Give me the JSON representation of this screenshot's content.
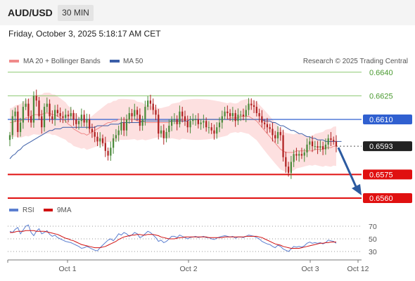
{
  "header": {
    "symbol": "AUD/USD",
    "timeframe": "30 MIN"
  },
  "datetime": "Friday, October 3, 2025 5:18:17 AM CET",
  "legend": {
    "ma20": "MA 20 + Bollinger Bands",
    "ma50": "MA 50",
    "rsi": "RSI",
    "ma9": "9MA"
  },
  "watermark": "Research © 2025 Trading Central",
  "colors": {
    "ma20": "#f08a8a",
    "bands": "#fde0e0",
    "ma50": "#3b5ea8",
    "up": "#4a8a3a",
    "down": "#b02020",
    "support": "#e01010",
    "resistance": "#8cc870",
    "current_line": "#3060d0",
    "arrow": "#2c5aa0",
    "rsi": "#5b7fd0",
    "rsi_ma": "#d01010"
  },
  "chart_data": [
    {
      "type": "candlestick",
      "title": "",
      "x_labels": [
        "Oct 1",
        "Oct 2",
        "Oct 3",
        "Oct 12"
      ],
      "ylim": [
        0.6555,
        0.6645
      ],
      "current_price": 0.6593,
      "levels": [
        {
          "value": 0.664,
          "label": "0.6640",
          "kind": "resistance"
        },
        {
          "value": 0.6625,
          "label": "0.6625",
          "kind": "resistance"
        },
        {
          "value": 0.661,
          "label": "0.6610",
          "kind": "pivot"
        },
        {
          "value": 0.6593,
          "label": "0.6593",
          "kind": "current"
        },
        {
          "value": 0.6575,
          "label": "0.6575",
          "kind": "support"
        },
        {
          "value": 0.656,
          "label": "0.6560",
          "kind": "support"
        }
      ],
      "forecast": {
        "from": 0.6593,
        "to": 0.656
      },
      "close": [
        0.66,
        0.6612,
        0.6615,
        0.6602,
        0.6608,
        0.6618,
        0.662,
        0.6612,
        0.6608,
        0.6625,
        0.6622,
        0.6612,
        0.6605,
        0.6618,
        0.662,
        0.6612,
        0.661,
        0.6616,
        0.6614,
        0.6612,
        0.6611,
        0.6613,
        0.6612,
        0.6614,
        0.661,
        0.6607,
        0.6609,
        0.6613,
        0.6608,
        0.661,
        0.6604,
        0.6602,
        0.6599,
        0.6596,
        0.6598,
        0.6595,
        0.659,
        0.6587,
        0.6592,
        0.6598,
        0.66,
        0.6603,
        0.6608,
        0.6603,
        0.661,
        0.6614,
        0.6612,
        0.6616,
        0.6613,
        0.6606,
        0.661,
        0.6618,
        0.6622,
        0.662,
        0.6616,
        0.6613,
        0.6601,
        0.6603,
        0.6598,
        0.6602,
        0.6606,
        0.661,
        0.661,
        0.6607,
        0.6615,
        0.6612,
        0.6609,
        0.6605,
        0.6609,
        0.661,
        0.661,
        0.6607,
        0.6608,
        0.6609,
        0.6605,
        0.6605,
        0.6603,
        0.6601,
        0.6605,
        0.6608,
        0.6612,
        0.6615,
        0.6614,
        0.6612,
        0.6614,
        0.6609,
        0.6613,
        0.6613,
        0.6612,
        0.6616,
        0.662,
        0.6619,
        0.6618,
        0.6614,
        0.6612,
        0.6608,
        0.6607,
        0.6605,
        0.6604,
        0.66,
        0.6598,
        0.6602,
        0.66,
        0.6586,
        0.658,
        0.6576,
        0.6583,
        0.6588,
        0.6587,
        0.6588,
        0.6587,
        0.6589,
        0.6594,
        0.6596,
        0.6593,
        0.6593,
        0.6592,
        0.6593,
        0.6591,
        0.6594,
        0.6598,
        0.6597,
        0.6596,
        0.6593
      ],
      "ma20": [
        0.6608,
        0.6608,
        0.6609,
        0.6609,
        0.6609,
        0.661,
        0.6611,
        0.6611,
        0.6612,
        0.6613,
        0.6613,
        0.6613,
        0.6613,
        0.6614,
        0.6614,
        0.6614,
        0.6613,
        0.6613,
        0.6612,
        0.6611,
        0.661,
        0.6609,
        0.6607,
        0.6606,
        0.6604,
        0.6603,
        0.6602,
        0.6601,
        0.6601,
        0.66,
        0.6601,
        0.6602,
        0.6603,
        0.6604,
        0.6605,
        0.6606,
        0.6607,
        0.6608,
        0.6608,
        0.6609,
        0.6609,
        0.661,
        0.661,
        0.661,
        0.661,
        0.661,
        0.661,
        0.661,
        0.6609,
        0.6609,
        0.6609,
        0.6608,
        0.6608,
        0.6608,
        0.6608,
        0.6608,
        0.6608,
        0.6608,
        0.6608,
        0.6608,
        0.6608,
        0.6609,
        0.6609,
        0.6609,
        0.6609,
        0.661,
        0.661,
        0.661,
        0.661,
        0.661,
        0.661,
        0.661,
        0.661,
        0.661,
        0.661,
        0.661,
        0.661,
        0.661,
        0.661,
        0.661,
        0.661,
        0.661,
        0.661,
        0.6611,
        0.6611,
        0.6611,
        0.6611,
        0.6612,
        0.6612,
        0.6612,
        0.6612,
        0.6611,
        0.661,
        0.6609,
        0.6607,
        0.6605,
        0.6603,
        0.6601,
        0.6599,
        0.6597,
        0.6595,
        0.6593,
        0.6591,
        0.659,
        0.6589,
        0.6589,
        0.6589,
        0.6589,
        0.659,
        0.659,
        0.659,
        0.659,
        0.659,
        0.659,
        0.659,
        0.6591,
        0.6591,
        0.6591,
        0.6591,
        0.6592,
        0.6592,
        0.6592,
        0.6593,
        0.6593
      ],
      "ma50": [
        0.6585,
        0.6587,
        0.6588,
        0.659,
        0.6591,
        0.6593,
        0.6594,
        0.6595,
        0.6596,
        0.6597,
        0.6598,
        0.6599,
        0.66,
        0.6601,
        0.6602,
        0.6603,
        0.6603,
        0.6604,
        0.6604,
        0.6604,
        0.6605,
        0.6605,
        0.6605,
        0.6605,
        0.6605,
        0.6605,
        0.6605,
        0.6605,
        0.6605,
        0.6605,
        0.6605,
        0.6605,
        0.6605,
        0.6606,
        0.6606,
        0.6606,
        0.6606,
        0.6606,
        0.6607,
        0.6607,
        0.6607,
        0.6607,
        0.6608,
        0.6608,
        0.6608,
        0.6608,
        0.6608,
        0.6608,
        0.6608,
        0.6608,
        0.6609,
        0.6609,
        0.6609,
        0.6609,
        0.6609,
        0.6609,
        0.6609,
        0.6609,
        0.6609,
        0.6609,
        0.6609,
        0.6609,
        0.6609,
        0.6609,
        0.6609,
        0.6609,
        0.6609,
        0.6609,
        0.661,
        0.661,
        0.661,
        0.661,
        0.661,
        0.661,
        0.661,
        0.661,
        0.661,
        0.661,
        0.661,
        0.661,
        0.661,
        0.661,
        0.661,
        0.661,
        0.661,
        0.661,
        0.661,
        0.661,
        0.661,
        0.661,
        0.661,
        0.661,
        0.661,
        0.661,
        0.661,
        0.661,
        0.6609,
        0.6609,
        0.6609,
        0.6608,
        0.6608,
        0.6607,
        0.6606,
        0.6606,
        0.6605,
        0.6604,
        0.6603,
        0.6603,
        0.6602,
        0.6601,
        0.6601,
        0.66,
        0.6599,
        0.6599,
        0.6598,
        0.6598,
        0.6597,
        0.6597,
        0.6597,
        0.6596,
        0.6596,
        0.6596,
        0.6596,
        0.6596,
        0.6596,
        0.6596
      ]
    },
    {
      "type": "line",
      "title": "",
      "ylim": [
        25,
        75
      ],
      "yticks": [
        "70",
        "50",
        "30"
      ],
      "rsi": [
        62,
        60,
        65,
        68,
        58,
        64,
        70,
        72,
        60,
        55,
        62,
        66,
        58,
        60,
        63,
        57,
        54,
        56,
        52,
        50,
        48,
        46,
        45,
        44,
        42,
        40,
        38,
        35,
        36,
        38,
        36,
        34,
        32,
        31,
        36,
        40,
        44,
        48,
        50,
        47,
        52,
        58,
        56,
        60,
        58,
        54,
        56,
        60,
        58,
        52,
        54,
        58,
        62,
        60,
        56,
        52,
        46,
        48,
        44,
        46,
        50,
        54,
        54,
        52,
        56,
        54,
        52,
        50,
        52,
        53,
        54,
        52,
        53,
        54,
        52,
        52,
        50,
        49,
        51,
        53,
        54,
        55,
        54,
        53,
        54,
        51,
        53,
        53,
        52,
        54,
        56,
        55,
        54,
        52,
        50,
        46,
        44,
        42,
        41,
        38,
        36,
        40,
        38,
        34,
        32,
        30,
        34,
        38,
        37,
        38,
        37,
        39,
        43,
        45,
        43,
        44,
        43,
        44,
        42,
        44,
        48,
        47,
        46,
        43
      ],
      "ma9": [
        60,
        60,
        61,
        62,
        62,
        62,
        63,
        63,
        63,
        63,
        62,
        62,
        62,
        62,
        61,
        60,
        59,
        58,
        57,
        55,
        53,
        51,
        50,
        48,
        47,
        45,
        43,
        41,
        40,
        39,
        38,
        37,
        36,
        36,
        36,
        37,
        38,
        40,
        42,
        44,
        46,
        49,
        51,
        53,
        54,
        55,
        56,
        56,
        57,
        57,
        56,
        56,
        57,
        57,
        57,
        56,
        55,
        53,
        52,
        51,
        50,
        50,
        50,
        51,
        52,
        52,
        53,
        53,
        53,
        53,
        53,
        53,
        53,
        53,
        53,
        52,
        52,
        52,
        52,
        52,
        52,
        53,
        53,
        53,
        53,
        53,
        53,
        53,
        53,
        54,
        54,
        54,
        54,
        54,
        53,
        52,
        50,
        48,
        46,
        44,
        42,
        41,
        40,
        38,
        37,
        36,
        35,
        35,
        35,
        35,
        36,
        37,
        38,
        39,
        40,
        41,
        42,
        43,
        43,
        44,
        44,
        45,
        45,
        45
      ]
    }
  ]
}
